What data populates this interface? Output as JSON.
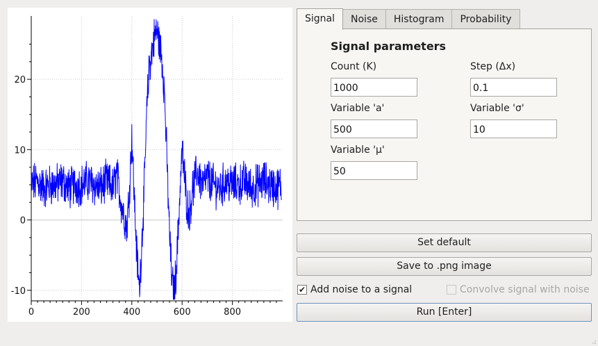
{
  "tabs": [
    {
      "label": "Signal",
      "active": true
    },
    {
      "label": "Noise",
      "active": false
    },
    {
      "label": "Histogram",
      "active": false
    },
    {
      "label": "Probability",
      "active": false
    }
  ],
  "signal_panel": {
    "title": "Signal parameters",
    "count_label": "Count (K)",
    "count_value": "1000",
    "step_label": "Step (Δx)",
    "step_value": "0.1",
    "a_label": "Variable 'a'",
    "a_value": "500",
    "sigma_label": "Variable 'σ'",
    "sigma_value": "10",
    "mu_label": "Variable 'μ'",
    "mu_value": "50"
  },
  "buttons": {
    "set_default": "Set default",
    "save_png": "Save to .png image",
    "run": "Run [Enter]"
  },
  "options": {
    "add_noise_label": "Add noise to a signal",
    "add_noise_checked": true,
    "convolve_label": "Convolve signal with noise",
    "convolve_checked": false,
    "convolve_enabled": false
  },
  "chart_data": {
    "type": "line",
    "xlim": [
      0,
      1000
    ],
    "ylim": [
      -11.5,
      29
    ],
    "x_ticks": [
      0,
      200,
      400,
      600,
      800
    ],
    "y_ticks": [
      -10,
      0,
      10,
      20
    ],
    "grid": true,
    "series_color": "#0000ff",
    "series": [
      {
        "x": [
          0,
          25,
          50,
          75,
          100,
          125,
          150,
          175,
          200,
          225,
          250,
          275,
          300,
          325,
          340,
          360,
          380,
          390,
          400,
          410,
          420,
          430,
          440,
          450,
          460,
          470,
          480,
          490,
          500,
          510,
          520,
          530,
          540,
          550,
          560,
          570,
          580,
          590,
          600,
          610,
          620,
          630,
          640,
          660,
          680,
          700,
          725,
          750,
          775,
          800,
          825,
          850,
          875,
          900,
          925,
          950,
          975,
          995
        ],
        "y": [
          5,
          5.5,
          4.5,
          5,
          5,
          5.5,
          4.5,
          5,
          5,
          5.5,
          5,
          4.5,
          5.5,
          4.5,
          6.5,
          2,
          -1,
          4,
          12,
          3,
          -5,
          -10,
          -3,
          5,
          16,
          22,
          24,
          26,
          27,
          25,
          23,
          18,
          8,
          -2,
          -9,
          -10,
          -5,
          3,
          10,
          6,
          2,
          1,
          4,
          7,
          5,
          6,
          5,
          4.5,
          5.5,
          5,
          5,
          5.5,
          4.5,
          5,
          5.5,
          5,
          4.5,
          5
        ]
      }
    ]
  }
}
